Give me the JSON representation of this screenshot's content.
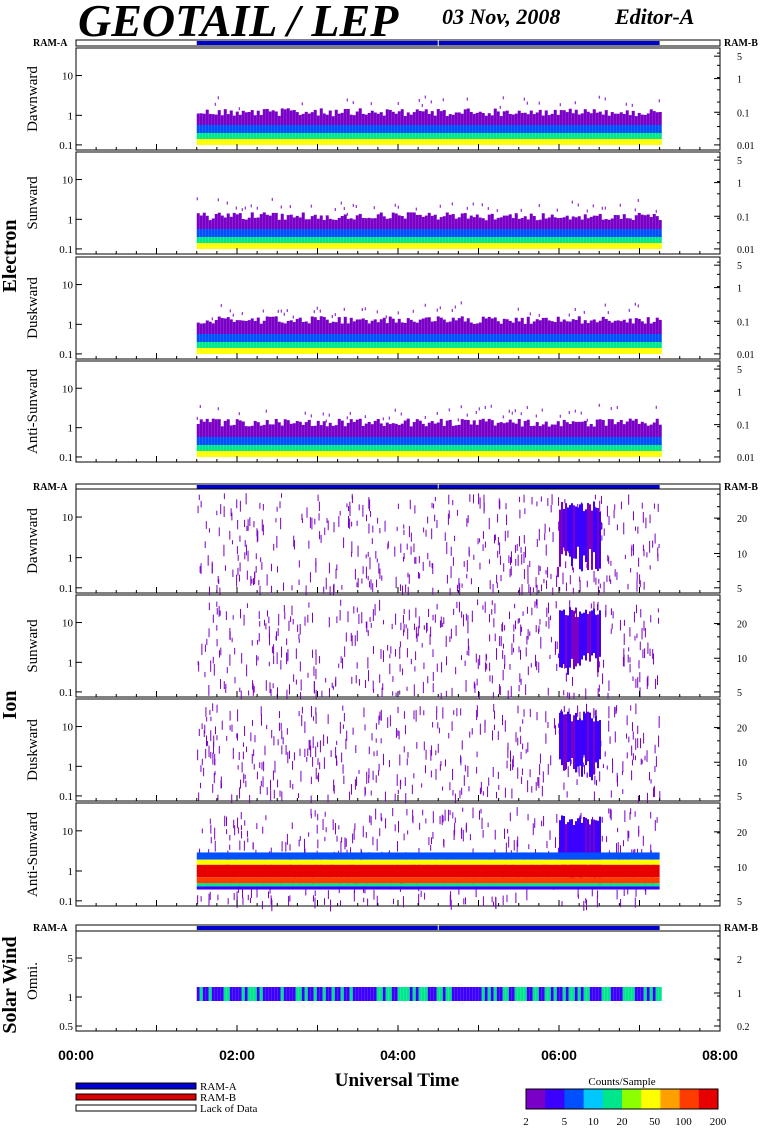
{
  "header": {
    "title": "GEOTAIL / LEP",
    "date": "03 Nov, 2008",
    "editor": "Editor-A"
  },
  "ram_labels": {
    "left": "RAM-A",
    "right": "RAM-B"
  },
  "chart_data": {
    "type": "heatmap",
    "x_ticks": [
      "00:00",
      "02:00",
      "04:00",
      "06:00",
      "08:00"
    ],
    "x_axis_label": "Universal Time",
    "data_span_utc": [
      "01:30",
      "07:15"
    ],
    "groups": [
      {
        "name": "Electron",
        "panels": [
          {
            "name": "Dawnward",
            "left_ticks": [
              "10",
              "1",
              "0.1"
            ],
            "right_ticks": [
              "5",
              "1",
              "0.1",
              "0.01"
            ],
            "profile": "electron",
            "level": 0.25
          },
          {
            "name": "Sunward",
            "left_ticks": [
              "10",
              "1",
              "0.1"
            ],
            "right_ticks": [
              "5",
              "1",
              "0.1",
              "0.01"
            ],
            "profile": "electron",
            "level": 0.25
          },
          {
            "name": "Duskward",
            "left_ticks": [
              "10",
              "1",
              "0.1"
            ],
            "right_ticks": [
              "5",
              "1",
              "0.1",
              "0.01"
            ],
            "profile": "electron",
            "level": 0.3
          },
          {
            "name": "Anti-Sunward",
            "left_ticks": [
              "10",
              "1",
              "0.1"
            ],
            "right_ticks": [
              "5",
              "1",
              "0.1",
              "0.01"
            ],
            "profile": "electron",
            "level": 0.35
          }
        ]
      },
      {
        "name": "Ion",
        "panels": [
          {
            "name": "Dawnward",
            "left_ticks": [
              "10",
              "1",
              "0.1"
            ],
            "right_ticks": [
              "20",
              "10",
              "5"
            ],
            "profile": "ion",
            "level": 0.0
          },
          {
            "name": "Sunward",
            "left_ticks": [
              "10",
              "1",
              "0.1"
            ],
            "right_ticks": [
              "20",
              "10",
              "5"
            ],
            "profile": "ion",
            "level": 0.0
          },
          {
            "name": "Duskward",
            "left_ticks": [
              "10",
              "1",
              "0.1"
            ],
            "right_ticks": [
              "20",
              "10",
              "5"
            ],
            "profile": "ion",
            "level": 0.0
          },
          {
            "name": "Anti-Sunward",
            "left_ticks": [
              "10",
              "1",
              "0.1"
            ],
            "right_ticks": [
              "20",
              "10",
              "5"
            ],
            "profile": "ion-band",
            "level": 0.0
          }
        ]
      },
      {
        "name": "Solar Wind",
        "panels": [
          {
            "name": "Omni.",
            "left_ticks": [
              "5",
              "1",
              "0.5"
            ],
            "right_ticks": [
              "2",
              "1",
              "0.2"
            ],
            "profile": "sw",
            "level": 0.0
          }
        ]
      }
    ],
    "legend": {
      "items": [
        {
          "label": "RAM-A",
          "color": "#0000cc"
        },
        {
          "label": "RAM-B",
          "color": "#dd0000"
        },
        {
          "label": "Lack of Data",
          "color": "#ffffff"
        }
      ]
    },
    "colorbar": {
      "title": "Counts/Sample",
      "ticks": [
        "2",
        "5",
        "10",
        "20",
        "50",
        "100",
        "200"
      ],
      "colors": [
        "#7a00c8",
        "#3c00ff",
        "#0050ff",
        "#00c8ff",
        "#00e68c",
        "#8cff00",
        "#ffff00",
        "#ffa000",
        "#ff3c00",
        "#e60000"
      ]
    }
  }
}
